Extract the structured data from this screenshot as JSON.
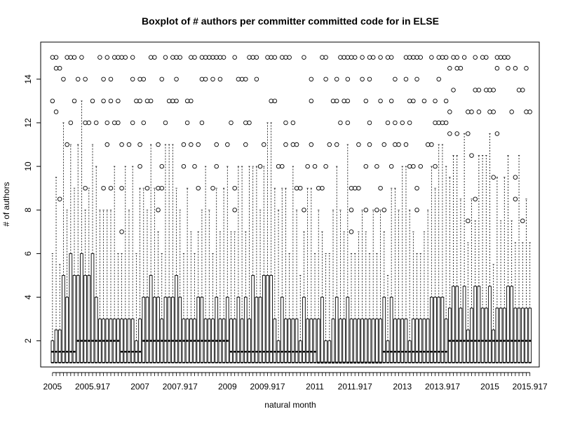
{
  "chart_data": {
    "type": "boxplot",
    "title": "Boxplot of # authors per committer committed code for in ELSE",
    "xlabel": "natural month",
    "ylabel": "# of authors",
    "xlim": [
      2004.73,
      2016.13
    ],
    "ylim": [
      0.8,
      15.7
    ],
    "x_ticks": [
      2005,
      2005.917,
      2007,
      2007.917,
      2009,
      2009.917,
      2011,
      2011.917,
      2013,
      2013.917,
      2015,
      2015.917
    ],
    "x_tick_labels": [
      "2005",
      "2005.917",
      "2007",
      "2007.917",
      "2009",
      "2009.917",
      "2011",
      "2011.917",
      "2013",
      "2013.917",
      "2015",
      "2015.917"
    ],
    "y_ticks": [
      2,
      4,
      6,
      8,
      10,
      12,
      14
    ],
    "y_tick_labels": [
      "2",
      "4",
      "6",
      "8",
      "10",
      "12",
      "14"
    ],
    "grid": false,
    "x_start": 2005,
    "x_step": 0.08333,
    "months": 132,
    "medians_by_period": [
      {
        "from": 2005.0,
        "to": 2005.5,
        "value": 1.5
      },
      {
        "from": 2005.5,
        "to": 2006.5,
        "value": 2
      },
      {
        "from": 2006.5,
        "to": 2007.0,
        "value": 1.5
      },
      {
        "from": 2007.0,
        "to": 2008.5,
        "value": 2
      },
      {
        "from": 2008.5,
        "to": 2009.0,
        "value": 2
      },
      {
        "from": 2009.0,
        "to": 2010.0,
        "value": 1.5
      },
      {
        "from": 2010.0,
        "to": 2011.0,
        "value": 1.5
      },
      {
        "from": 2011.0,
        "to": 2012.5,
        "value": 1
      },
      {
        "from": 2012.5,
        "to": 2014.0,
        "value": 1.5
      },
      {
        "from": 2014.0,
        "to": 2016.0,
        "value": 2
      }
    ],
    "q3_by_period": [
      {
        "from": 2005.0,
        "to": 2005.4,
        "value": 4
      },
      {
        "from": 2005.4,
        "to": 2006.0,
        "value": 5
      },
      {
        "from": 2006.0,
        "to": 2007.0,
        "value": 3
      },
      {
        "from": 2007.0,
        "to": 2008.0,
        "value": 4
      },
      {
        "from": 2008.0,
        "to": 2009.0,
        "value": 3
      },
      {
        "from": 2009.0,
        "to": 2010.0,
        "value": 4
      },
      {
        "from": 2010.0,
        "to": 2011.5,
        "value": 3
      },
      {
        "from": 2011.5,
        "to": 2012.5,
        "value": 3
      },
      {
        "from": 2012.5,
        "to": 2014.0,
        "value": 3
      },
      {
        "from": 2014.0,
        "to": 2016.0,
        "value": 3.5
      }
    ],
    "whisker_max": 15,
    "outlier_range": [
      4,
      15
    ]
  }
}
